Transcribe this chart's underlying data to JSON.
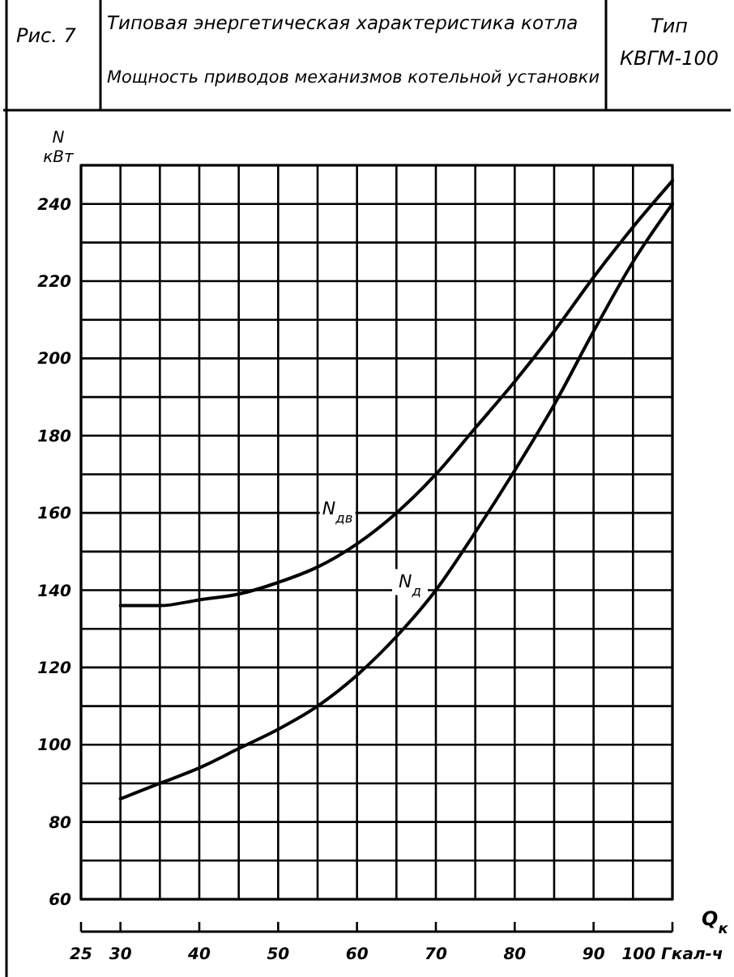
{
  "chart_data": {
    "type": "line",
    "title": "Типовая энергетическая характеристика котла",
    "subtitle": "Мощность приводов механизмов котельной установки",
    "xlabel": "Q$_{к}$",
    "ylabel": "N кВт",
    "annotations": [
      "Рис. 7",
      "Тип КВГМ-100"
    ],
    "x": [
      30,
      35,
      40,
      45,
      50,
      55,
      60,
      65,
      70,
      75,
      80,
      85,
      90,
      95,
      100
    ],
    "series": [
      {
        "name": "N$_{дв}$",
        "color": "#000000",
        "values": [
          136,
          136,
          137.5,
          139,
          142,
          146,
          152,
          160,
          170,
          182,
          194,
          207,
          221,
          234,
          246
        ]
      },
      {
        "name": "N$_{д}$",
        "color": "#000000",
        "values": [
          86,
          90,
          94,
          99,
          104,
          110,
          118,
          128,
          140,
          155,
          171,
          188,
          207,
          225,
          240
        ]
      }
    ],
    "xlim": [
      25,
      100
    ],
    "ylim": [
      60,
      250
    ],
    "xticks": [
      25,
      30,
      {
        "value": 35,
        "label": null
      },
      40,
      {
        "value": 45,
        "label": null
      },
      50,
      {
        "value": 55,
        "label": null
      },
      60,
      {
        "value": 65,
        "label": null
      },
      70,
      {
        "value": 75,
        "label": null
      },
      80,
      {
        "value": 85,
        "label": null
      },
      90,
      {
        "value": 95,
        "label": null
      },
      {
        "value": 100,
        "label": "100 Гкал-ч"
      }
    ],
    "yticks": [
      60,
      {
        "value": 70,
        "label": null
      },
      80,
      {
        "value": 90,
        "label": null
      },
      100,
      {
        "value": 110,
        "label": null
      },
      120,
      {
        "value": 130,
        "label": null
      },
      140,
      {
        "value": 150,
        "label": null
      },
      160,
      {
        "value": 170,
        "label": null
      },
      180,
      {
        "value": 190,
        "label": null
      },
      200,
      {
        "value": 210,
        "label": null
      },
      220,
      {
        "value": 230,
        "label": null
      },
      240,
      {
        "value": 250,
        "label": null
      }
    ],
    "grid": true,
    "marker": "none",
    "line_style": "solid"
  }
}
